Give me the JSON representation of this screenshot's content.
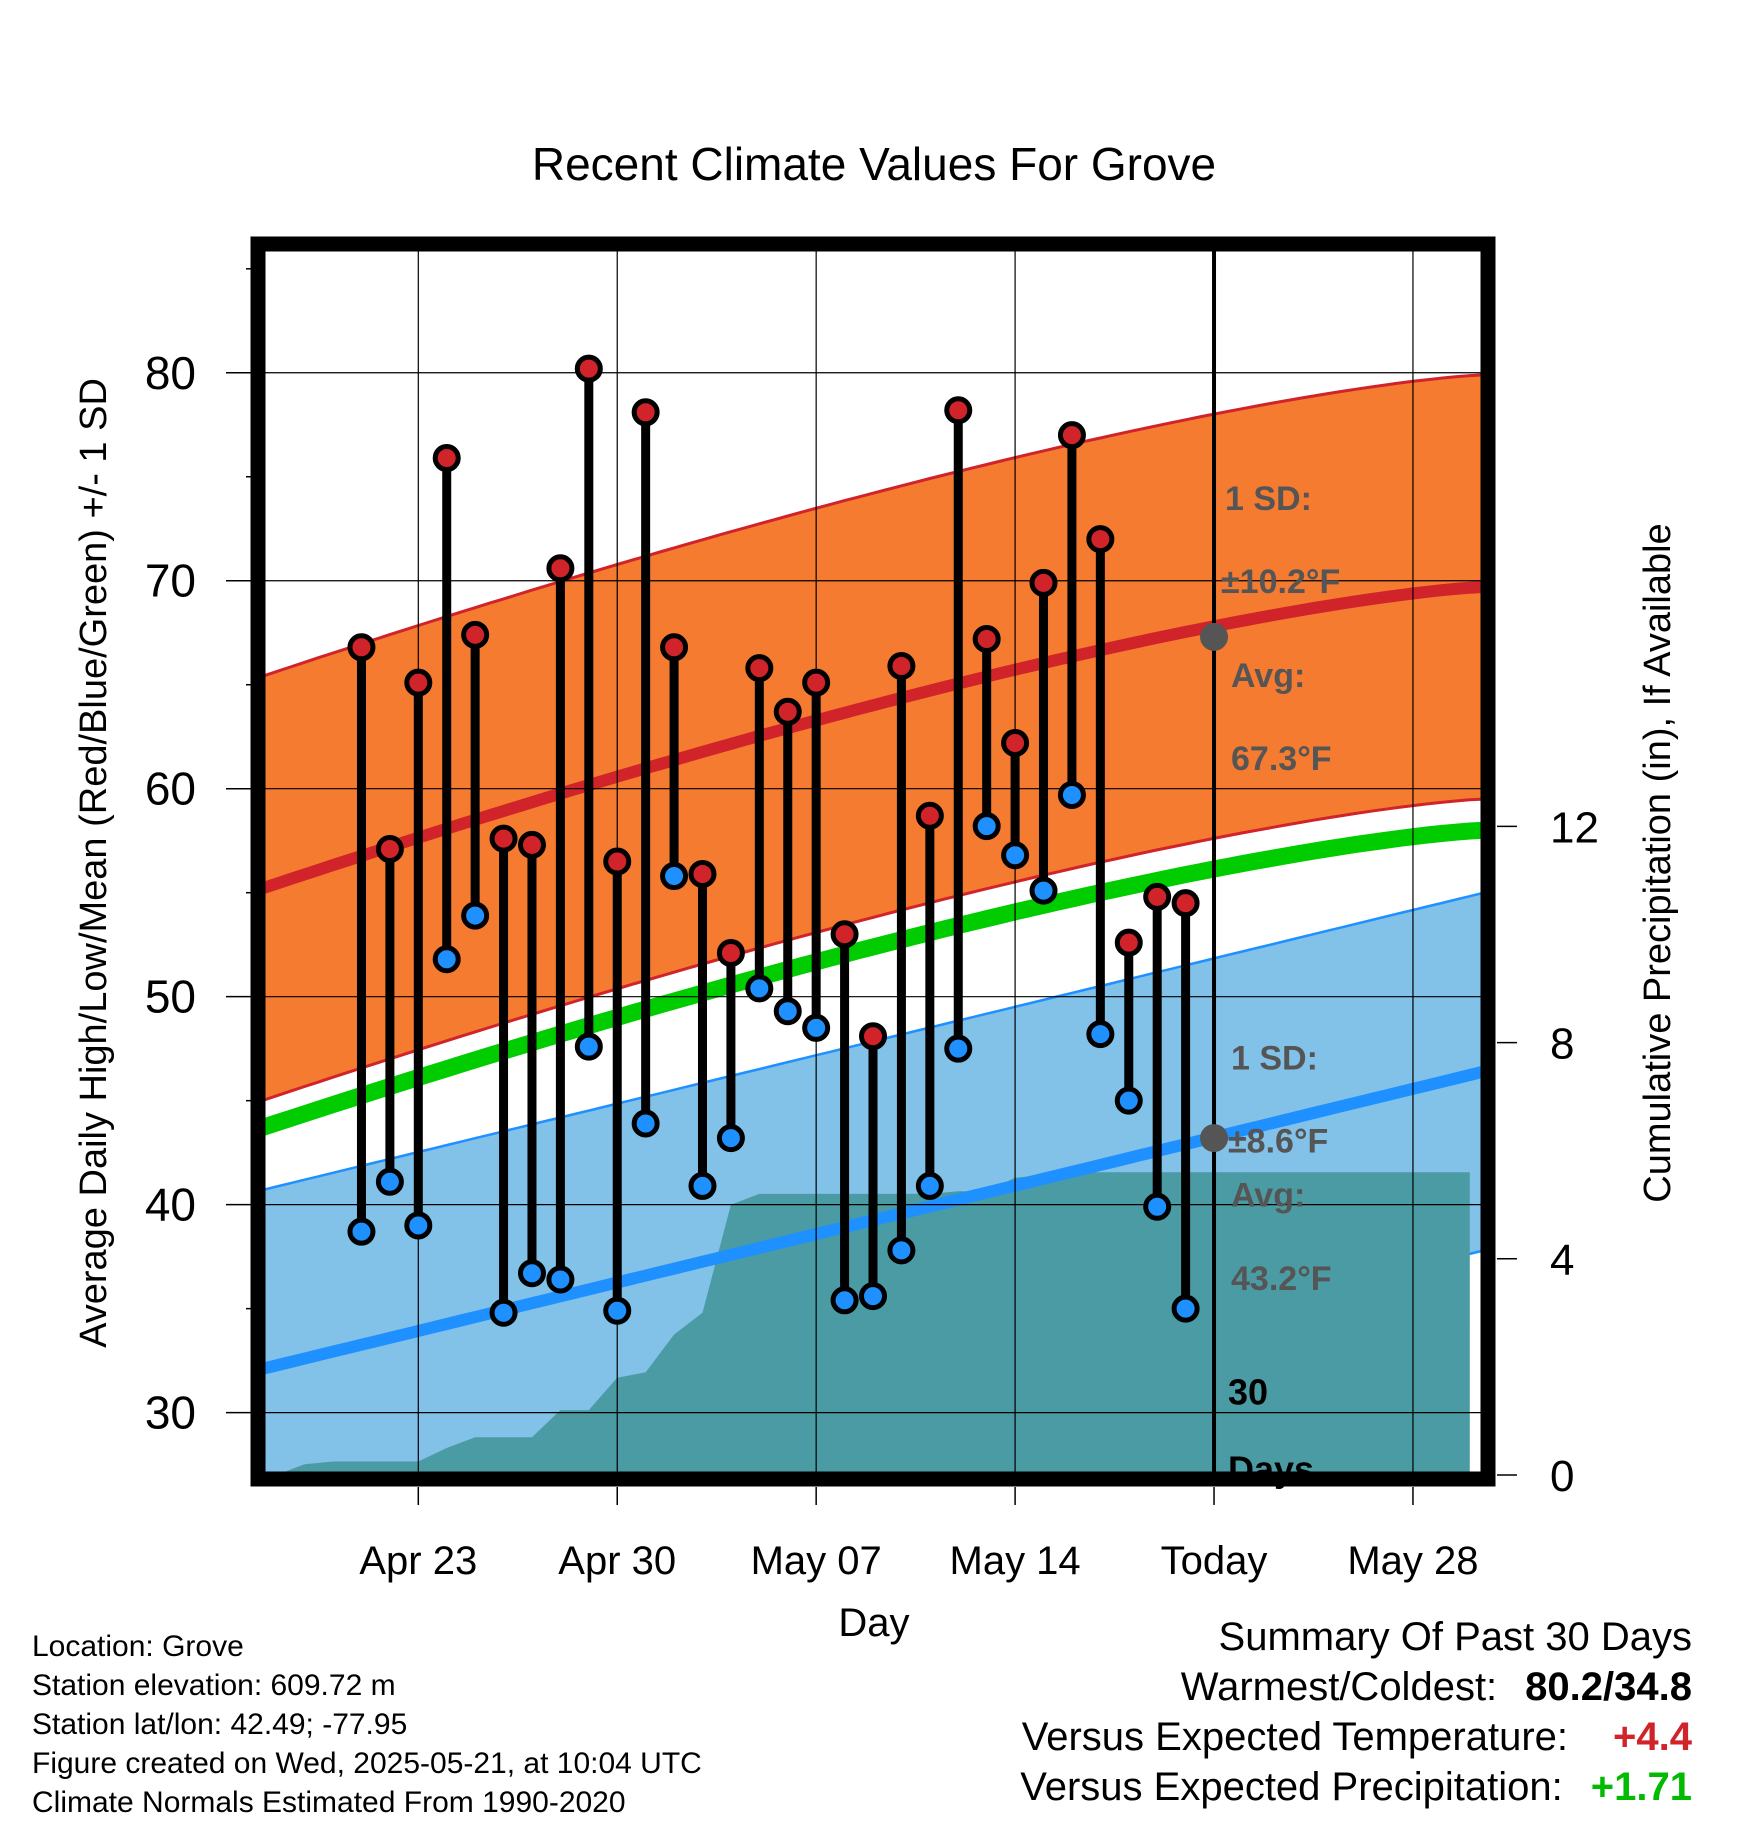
{
  "title": "Recent Climate Values For Grove",
  "colors": {
    "high": "#d0232a",
    "low": "#1e90ff",
    "mean_normal": "#00cc00",
    "high_band": "#f47b2f",
    "low_band": "#82c1e8",
    "precip": "#4a9ba3",
    "positive": "#d0232a",
    "precip_positive": "#00bb00"
  },
  "chart_data": {
    "type": "line",
    "title": "Recent Climate Values For Grove",
    "xlabel": "Day",
    "ylabel": "Average Daily High/Low/Mean (Red/Blue/Green) +/- 1 SD",
    "y2label": "Cumulative Precipitation (in), If Available",
    "x_ticks": [
      "Apr 23",
      "Apr 30",
      "May 07",
      "May 14",
      "Today",
      "May 28"
    ],
    "x_tick_days": [
      3,
      10,
      17,
      24,
      31,
      38
    ],
    "xlim": [
      -2.5,
      40.5
    ],
    "ylim": [
      27,
      86
    ],
    "y_ticks": [
      30,
      40,
      50,
      60,
      70,
      80
    ],
    "y2lim": [
      0,
      22.7
    ],
    "y2_ticks": [
      0,
      4,
      8,
      12
    ],
    "days": [
      1,
      2,
      3,
      4,
      5,
      6,
      7,
      8,
      9,
      10,
      11,
      12,
      13,
      14,
      15,
      16,
      17,
      18,
      19,
      20,
      21,
      22,
      23,
      24,
      25,
      26,
      27,
      28,
      29,
      30
    ],
    "observed_high": [
      66.8,
      57.1,
      65.1,
      75.9,
      67.4,
      57.6,
      57.3,
      70.6,
      80.2,
      56.5,
      78.1,
      66.8,
      55.9,
      52.1,
      65.8,
      63.7,
      65.1,
      53.0,
      48.1,
      65.9,
      58.7,
      78.2,
      67.2,
      62.2,
      69.9,
      77.0,
      72.0,
      52.6,
      54.8,
      54.5
    ],
    "observed_low": [
      38.7,
      41.1,
      39.0,
      51.8,
      53.9,
      34.8,
      36.7,
      36.4,
      47.6,
      34.9,
      43.9,
      55.8,
      40.9,
      43.2,
      50.4,
      49.3,
      48.5,
      35.4,
      35.6,
      37.8,
      40.9,
      47.5,
      58.2,
      56.8,
      55.1,
      59.7,
      48.2,
      45.0,
      39.9,
      35.0
    ],
    "normal_high_start": 55.2,
    "normal_high_end": 69.7,
    "normal_low_start": 32.1,
    "normal_low_end": 46.4,
    "normal_mean_start": 43.7,
    "normal_mean_end": 58.0,
    "high_sd": 10.2,
    "low_sd": 8.6,
    "precip_days": [
      -2,
      -1,
      0,
      3,
      4,
      5,
      6,
      7,
      8,
      9,
      10,
      11,
      12,
      13,
      14,
      15,
      16,
      17,
      18,
      19,
      20,
      21,
      22,
      23,
      24,
      25,
      26,
      27,
      28,
      29,
      30,
      31,
      35,
      40
    ],
    "precip_cumulative": [
      0.0,
      0.2,
      0.25,
      0.25,
      0.5,
      0.7,
      0.7,
      0.7,
      1.2,
      1.2,
      1.8,
      1.9,
      2.6,
      3.0,
      5.0,
      5.2,
      5.2,
      5.2,
      5.2,
      5.2,
      5.2,
      5.2,
      5.25,
      5.25,
      5.5,
      5.55,
      5.6,
      5.6,
      5.6,
      5.6,
      5.6,
      5.6,
      5.6,
      5.6
    ],
    "annotations": {
      "today_day": 31,
      "high_sd_label": "1 SD:",
      "high_sd_value": "±10.2°F",
      "high_avg_label": "Avg:",
      "high_avg_value": "67.3°F",
      "high_avg_point": 67.3,
      "low_sd_label": "1 SD:",
      "low_sd_value": "±8.6°F",
      "low_avg_label": "Avg:",
      "low_avg_value": "43.2°F",
      "low_avg_point": 43.2,
      "days_label_1": "30",
      "days_label_2": "Days"
    }
  },
  "info": {
    "location": "Location: Grove",
    "elevation": "Station elevation: 609.72 m",
    "latlon": "Station lat/lon: 42.49; -77.95",
    "created": "Figure created on Wed, 2025-05-21, at 10:04 UTC",
    "normals": "Climate Normals Estimated From 1990-2020"
  },
  "summary": {
    "title": "Summary Of Past 30 Days",
    "warm_cold_label": "Warmest/Coldest:",
    "warm_cold_value": "80.2/34.8",
    "temp_label": "Versus Expected Temperature:",
    "temp_value": "+4.4",
    "precip_label": "Versus Expected Precipitation:",
    "precip_value": "+1.71"
  }
}
